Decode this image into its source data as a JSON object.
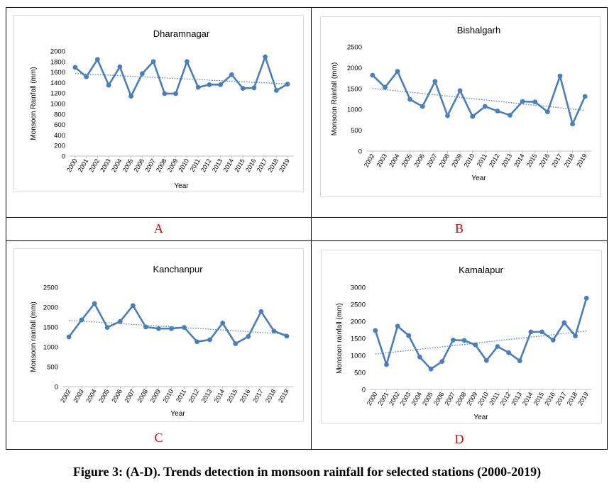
{
  "caption": "Figure 3: (A-D). Trends detection in monsoon rainfall for selected stations (2000-2019)",
  "colors": {
    "series": "#4a7ebb",
    "trend": "#4a7ebb",
    "label": "#e00000"
  },
  "chart_data": [
    {
      "id": "A",
      "panel_label": "A",
      "type": "line",
      "title": "Dharamnagar",
      "xlabel": "Year",
      "ylabel": "Monsoon Rainfall (mm)",
      "ylim": [
        0,
        2000
      ],
      "yticks": [
        0,
        200,
        400,
        600,
        800,
        1000,
        1200,
        1400,
        1600,
        1800,
        2000
      ],
      "categories": [
        "2000",
        "2001",
        "2002",
        "2003",
        "2004",
        "2005",
        "2006",
        "2007",
        "2008",
        "2009",
        "2010",
        "2011",
        "2012",
        "2013",
        "2014",
        "2015",
        "2016",
        "2017",
        "2018",
        "2019"
      ],
      "values": [
        1690,
        1510,
        1840,
        1350,
        1700,
        1140,
        1570,
        1800,
        1190,
        1190,
        1800,
        1310,
        1360,
        1360,
        1550,
        1290,
        1300,
        1890,
        1250,
        1370
      ],
      "trendline": true
    },
    {
      "id": "B",
      "panel_label": "B",
      "type": "line",
      "title": "Bishalgarh",
      "xlabel": "Year",
      "ylabel": "Monsoon Rainfall (mm)",
      "ylim": [
        0,
        2500
      ],
      "yticks": [
        0,
        500,
        1000,
        1500,
        2000,
        2500
      ],
      "categories": [
        "2002",
        "2003",
        "2004",
        "2005",
        "2006",
        "2007",
        "2008",
        "2009",
        "2010",
        "2011",
        "2012",
        "2013",
        "2014",
        "2015",
        "2016",
        "2017",
        "2018",
        "2019"
      ],
      "values": [
        1820,
        1530,
        1910,
        1240,
        1070,
        1670,
        850,
        1450,
        830,
        1070,
        960,
        860,
        1190,
        1180,
        940,
        1800,
        650,
        1310
      ],
      "trendline": true
    },
    {
      "id": "C",
      "panel_label": "C",
      "type": "line",
      "title": "Kanchanpur",
      "xlabel": "Year",
      "ylabel": "Monsoon rainfall (mm)",
      "ylim": [
        0,
        2500
      ],
      "yticks": [
        0,
        500,
        1000,
        1500,
        2000,
        2500
      ],
      "categories": [
        "2002",
        "2003",
        "2004",
        "2005",
        "2006",
        "2007",
        "2008",
        "2009",
        "2010",
        "2011",
        "2012",
        "2013",
        "2014",
        "2015",
        "2016",
        "2017",
        "2018",
        "2019"
      ],
      "values": [
        1250,
        1680,
        2090,
        1490,
        1640,
        2040,
        1500,
        1460,
        1460,
        1490,
        1130,
        1180,
        1600,
        1080,
        1260,
        1890,
        1400,
        1270
      ],
      "trendline": true
    },
    {
      "id": "D",
      "panel_label": "D",
      "type": "line",
      "title": "Kamalapur",
      "xlabel": "Year",
      "ylabel": "Monsoon rainfall (mm)",
      "ylim": [
        0,
        3000
      ],
      "yticks": [
        0,
        500,
        1000,
        1500,
        2000,
        2500,
        3000
      ],
      "categories": [
        "2000",
        "2001",
        "2002",
        "2003",
        "2004",
        "2005",
        "2006",
        "2007",
        "2008",
        "2009",
        "2010",
        "2011",
        "2012",
        "2013",
        "2014",
        "2015",
        "2016",
        "2017",
        "2018",
        "2019"
      ],
      "values": [
        1730,
        730,
        1860,
        1580,
        950,
        600,
        820,
        1450,
        1440,
        1310,
        850,
        1260,
        1080,
        840,
        1690,
        1690,
        1450,
        1960,
        1570,
        2680
      ],
      "trendline": true
    }
  ]
}
